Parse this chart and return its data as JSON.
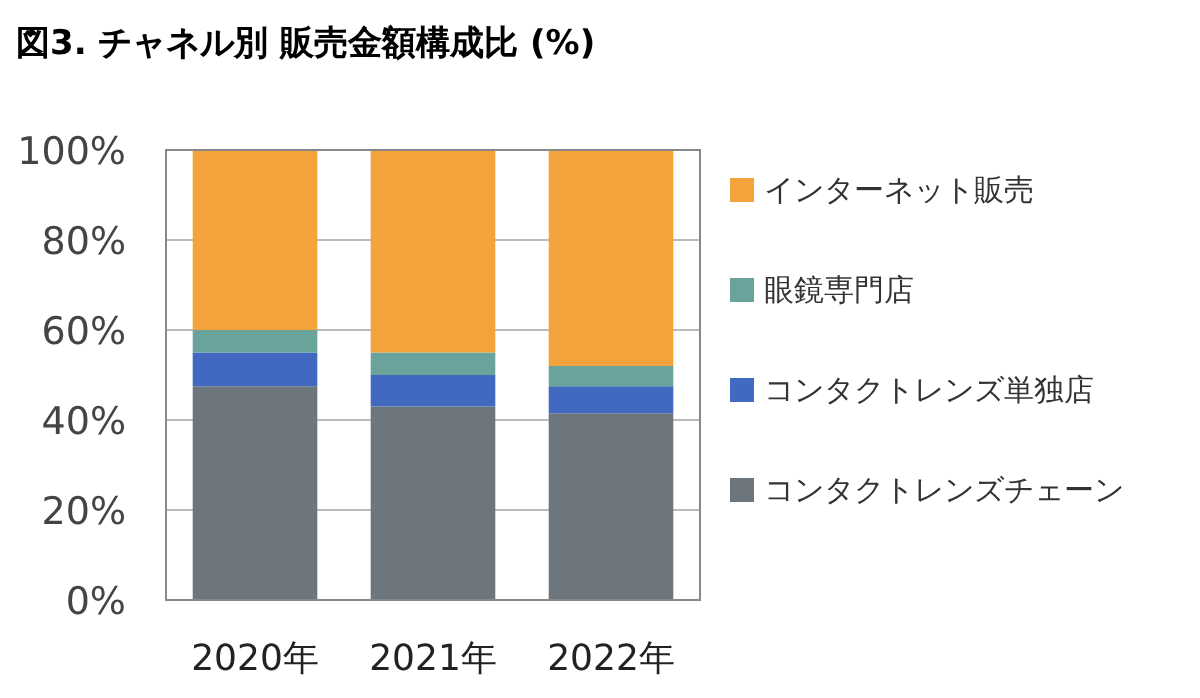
{
  "chart_data": {
    "type": "bar",
    "title": "図3. チャネル別 販売金額構成比 (%)",
    "stacked": true,
    "categories": [
      "2020年",
      "2021年",
      "2022年"
    ],
    "series": [
      {
        "name": "コンタクトレンズチェーン",
        "color": "#6c767c",
        "values": [
          47.5,
          43,
          41.5
        ]
      },
      {
        "name": "コンタクトレンズ単独店",
        "color": "#4169c0",
        "values": [
          7.5,
          7,
          6
        ]
      },
      {
        "name": "眼鏡専門店",
        "color": "#6aa39b",
        "values": [
          5,
          5,
          4.5
        ]
      },
      {
        "name": "インターネット販売",
        "color": "#f2a33c",
        "values": [
          40,
          45,
          48
        ]
      }
    ],
    "ylim": [
      0,
      100
    ],
    "yticks": [
      {
        "value": 0,
        "label": "0%"
      },
      {
        "value": 20,
        "label": "20%"
      },
      {
        "value": 40,
        "label": "40%"
      },
      {
        "value": 60,
        "label": "60%"
      },
      {
        "value": 80,
        "label": "80%"
      },
      {
        "value": 100,
        "label": "100%"
      }
    ],
    "grid": "y",
    "legend": "right"
  }
}
